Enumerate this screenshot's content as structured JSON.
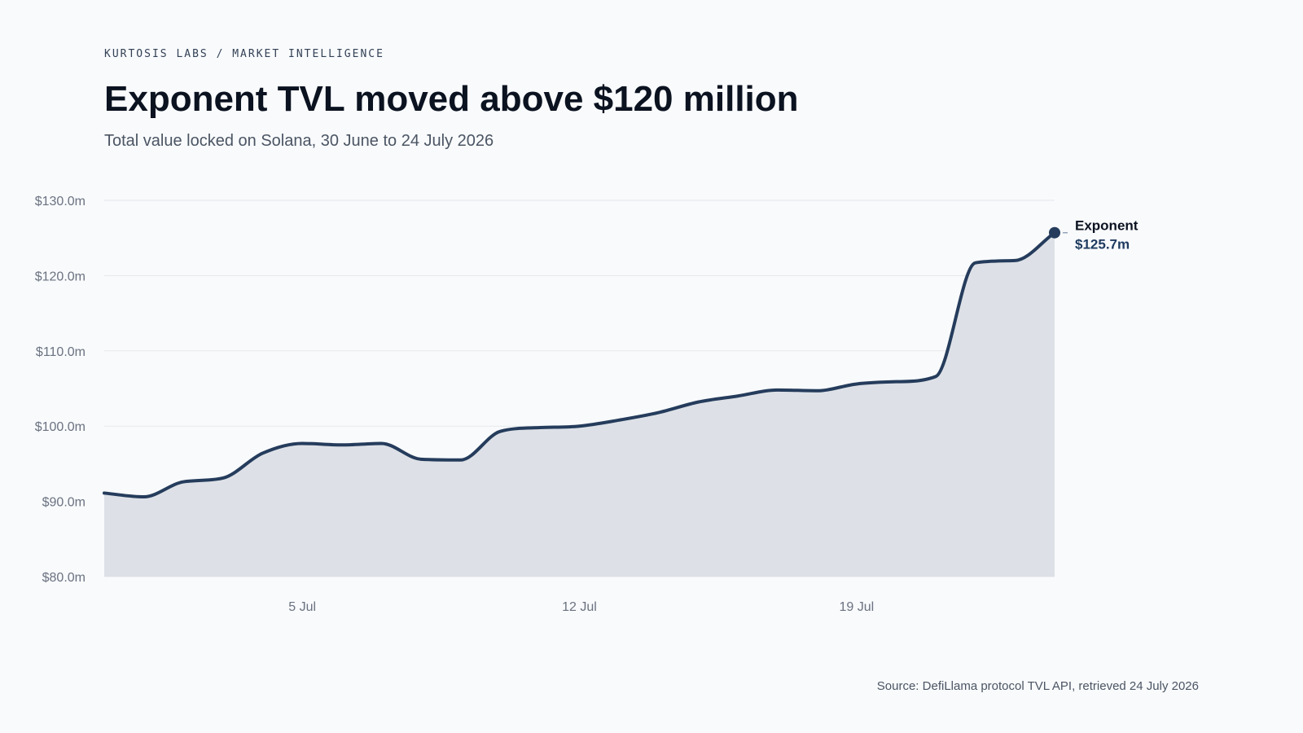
{
  "header": {
    "kicker": "KURTOSIS LABS / MARKET INTELLIGENCE",
    "title": "Exponent TVL moved above $120 million",
    "subtitle": "Total value locked on Solana, 30 June to 24 July 2026"
  },
  "footer": {
    "source": "Source: DefiLlama protocol TVL API, retrieved 24 July 2026"
  },
  "colors": {
    "line": "#253c5c",
    "area": "#dde1e7",
    "grid": "#e5e7eb",
    "background": "#f8fafc"
  },
  "chart_data": {
    "type": "area",
    "title": "Exponent TVL moved above $120 million",
    "subtitle": "Total value locked on Solana, 30 June to 24 July 2026",
    "ylim": [
      80,
      130
    ],
    "y_ticks": [
      {
        "value": 130,
        "label": "$130.0m"
      },
      {
        "value": 120,
        "label": "$120.0m"
      },
      {
        "value": 110,
        "label": "$110.0m"
      },
      {
        "value": 100,
        "label": "$100.0m"
      },
      {
        "value": 90,
        "label": "$90.0m"
      },
      {
        "value": 80,
        "label": "$80.0m"
      }
    ],
    "x_ticks": [
      {
        "date": "2026-07-05",
        "label": "5 Jul"
      },
      {
        "date": "2026-07-12",
        "label": "12 Jul"
      },
      {
        "date": "2026-07-19",
        "label": "19 Jul"
      }
    ],
    "grid": true,
    "series": [
      {
        "name": "Exponent",
        "end_label": "$125.7m",
        "points": [
          {
            "date": "2026-06-30",
            "value": 91.1
          },
          {
            "date": "2026-07-01",
            "value": 90.6
          },
          {
            "date": "2026-07-02",
            "value": 92.6
          },
          {
            "date": "2026-07-03",
            "value": 93.1
          },
          {
            "date": "2026-07-04",
            "value": 96.4
          },
          {
            "date": "2026-07-05",
            "value": 97.7
          },
          {
            "date": "2026-07-06",
            "value": 97.5
          },
          {
            "date": "2026-07-07",
            "value": 97.7
          },
          {
            "date": "2026-07-08",
            "value": 95.6
          },
          {
            "date": "2026-07-09",
            "value": 95.5
          },
          {
            "date": "2026-07-10",
            "value": 99.3
          },
          {
            "date": "2026-07-11",
            "value": 99.8
          },
          {
            "date": "2026-07-12",
            "value": 100.0
          },
          {
            "date": "2026-07-13",
            "value": 100.8
          },
          {
            "date": "2026-07-14",
            "value": 101.8
          },
          {
            "date": "2026-07-15",
            "value": 103.2
          },
          {
            "date": "2026-07-16",
            "value": 104.0
          },
          {
            "date": "2026-07-17",
            "value": 104.8
          },
          {
            "date": "2026-07-18",
            "value": 104.7
          },
          {
            "date": "2026-07-19",
            "value": 105.6
          },
          {
            "date": "2026-07-20",
            "value": 105.9
          },
          {
            "date": "2026-07-21",
            "value": 106.6
          },
          {
            "date": "2026-07-22",
            "value": 121.7
          },
          {
            "date": "2026-07-23",
            "value": 122.0
          },
          {
            "date": "2026-07-24",
            "value": 125.7
          }
        ]
      }
    ]
  }
}
